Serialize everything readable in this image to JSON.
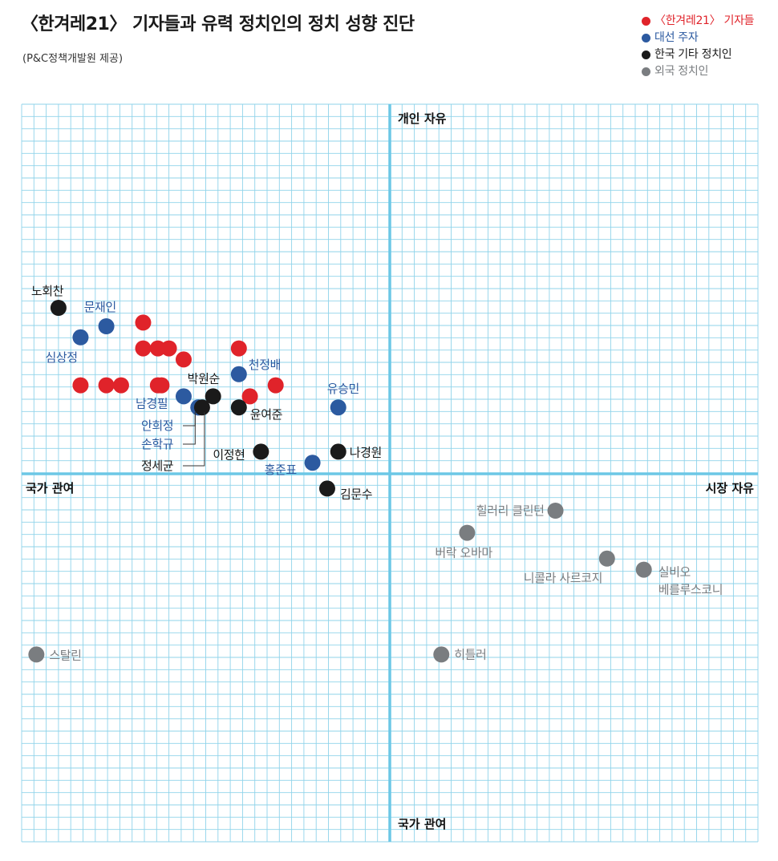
{
  "header": {
    "title": "〈한겨레21〉 기자들과 유력 정치인의 정치 성향 진단",
    "subtitle": "(P&C정책개발원 제공)"
  },
  "colors": {
    "grid": "#8fd3ea",
    "axis": "#6cc7e6",
    "journalist": "#e0232a",
    "candidate": "#2c5aa0",
    "korean_other": "#1a1a1a",
    "foreign": "#7a7d80"
  },
  "chart_data": {
    "type": "scatter",
    "xlim": [
      -1,
      1
    ],
    "ylim": [
      -1,
      1
    ],
    "grid": true,
    "legend_position": "top-right",
    "axis_labels": {
      "top": "개인 자유",
      "bottom": "국가 관여",
      "left": "국가 관여",
      "right": "시장 자유"
    },
    "series": [
      {
        "name": "〈한겨레21〉 기자들",
        "color_key": "journalist",
        "points": [
          {
            "x": -0.67,
            "y": 0.41
          },
          {
            "x": -0.67,
            "y": 0.34
          },
          {
            "x": -0.63,
            "y": 0.34
          },
          {
            "x": -0.6,
            "y": 0.34
          },
          {
            "x": -0.56,
            "y": 0.31
          },
          {
            "x": -0.84,
            "y": 0.24
          },
          {
            "x": -0.77,
            "y": 0.24
          },
          {
            "x": -0.73,
            "y": 0.24
          },
          {
            "x": -0.63,
            "y": 0.24
          },
          {
            "x": -0.62,
            "y": 0.24
          },
          {
            "x": -0.41,
            "y": 0.34
          },
          {
            "x": -0.38,
            "y": 0.21
          },
          {
            "x": -0.31,
            "y": 0.24
          }
        ]
      },
      {
        "name": "대선 주자",
        "color_key": "candidate",
        "points": [
          {
            "x": -0.77,
            "y": 0.4,
            "label": "문재인"
          },
          {
            "x": -0.84,
            "y": 0.37,
            "label": "심상정"
          },
          {
            "x": -0.41,
            "y": 0.27,
            "label": "천정배"
          },
          {
            "x": -0.56,
            "y": 0.21,
            "label": "남경필"
          },
          {
            "x": -0.52,
            "y": 0.18,
            "label": "안희정"
          },
          {
            "x": -0.52,
            "y": 0.18,
            "label": "손학규"
          },
          {
            "x": -0.14,
            "y": 0.18,
            "label": "유승민"
          },
          {
            "x": -0.21,
            "y": 0.03,
            "label": "홍준표"
          }
        ]
      },
      {
        "name": "한국 기타 정치인",
        "color_key": "korean_other",
        "points": [
          {
            "x": -0.9,
            "y": 0.45,
            "label": "노회찬"
          },
          {
            "x": -0.48,
            "y": 0.21,
            "label": "박원순"
          },
          {
            "x": -0.51,
            "y": 0.18,
            "label": "정세균"
          },
          {
            "x": -0.41,
            "y": 0.18,
            "label": "윤여준"
          },
          {
            "x": -0.35,
            "y": 0.06,
            "label": "이정현"
          },
          {
            "x": -0.14,
            "y": 0.06,
            "label": "나경원"
          },
          {
            "x": -0.17,
            "y": -0.04,
            "label": "김문수"
          }
        ]
      },
      {
        "name": "외국 정치인",
        "color_key": "foreign",
        "points": [
          {
            "x": 0.45,
            "y": -0.1,
            "label": "힐러리 클린턴"
          },
          {
            "x": 0.21,
            "y": -0.16,
            "label": "버락 오바마"
          },
          {
            "x": 0.59,
            "y": -0.23,
            "label": "니콜라 사르코지"
          },
          {
            "x": 0.69,
            "y": -0.26,
            "label": "실비오",
            "label2": "베를루스코니"
          },
          {
            "x": -0.96,
            "y": -0.49,
            "label": "스탈린"
          },
          {
            "x": 0.14,
            "y": -0.49,
            "label": "히틀러"
          }
        ]
      }
    ]
  }
}
